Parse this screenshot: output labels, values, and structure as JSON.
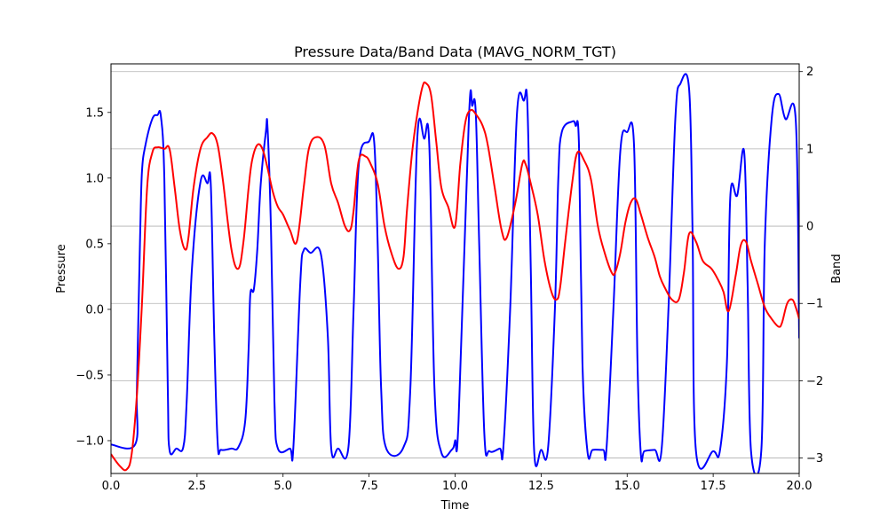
{
  "chart_data": {
    "type": "line",
    "title": "Pressure Data/Band Data (MAVG_NORM_TGT)",
    "xlabel": "Time",
    "ylabel": "Pressure",
    "y2label": "Band",
    "xlim": [
      0,
      20
    ],
    "ylim": [
      -1.25,
      1.87
    ],
    "y2lim": [
      -3.2,
      2.1
    ],
    "x_ticks": [
      0.0,
      2.5,
      5.0,
      7.5,
      10.0,
      12.5,
      15.0,
      17.5,
      20.0
    ],
    "x_tick_labels": [
      "0.0",
      "2.5",
      "5.0",
      "7.5",
      "10.0",
      "12.5",
      "15.0",
      "17.5",
      "20.0"
    ],
    "y_ticks": [
      -1.0,
      -0.5,
      0.0,
      0.5,
      1.0,
      1.5
    ],
    "y_tick_labels": [
      "−1.0",
      "−0.5",
      "0.0",
      "0.5",
      "1.0",
      "1.5"
    ],
    "y2_ticks": [
      -3,
      -2,
      -1,
      0,
      1,
      2
    ],
    "y2_tick_labels": [
      "−3",
      "−2",
      "−1",
      "0",
      "1",
      "2"
    ],
    "grid": "horizontal on secondary axis",
    "series": [
      {
        "axis": "left",
        "color": "#0000ff",
        "x": [
          0.0,
          0.7,
          0.75,
          0.8,
          0.85,
          0.9,
          1.0,
          1.2,
          1.35,
          1.45,
          1.55,
          1.65,
          1.7,
          1.9,
          2.1,
          2.2,
          2.35,
          2.6,
          2.8,
          2.9,
          3.0,
          3.1,
          3.2,
          3.5,
          3.7,
          3.9,
          4.0,
          4.05,
          4.15,
          4.25,
          4.35,
          4.5,
          4.55,
          4.65,
          4.75,
          4.85,
          5.2,
          5.3,
          5.5,
          5.6,
          5.8,
          6.1,
          6.3,
          6.4,
          6.6,
          6.9,
          7.05,
          7.2,
          7.5,
          7.65,
          7.75,
          7.85,
          8.0,
          8.5,
          8.7,
          8.9,
          9.1,
          9.25,
          9.4,
          9.6,
          9.9,
          10.0,
          10.1,
          10.4,
          10.5,
          10.6,
          10.7,
          10.85,
          11.0,
          11.3,
          11.4,
          11.6,
          11.8,
          12.0,
          12.1,
          12.2,
          12.3,
          12.5,
          12.7,
          12.9,
          13.0,
          13.1,
          13.4,
          13.5,
          13.6,
          13.7,
          13.85,
          14.0,
          14.3,
          14.4,
          14.6,
          14.8,
          15.0,
          15.2,
          15.3,
          15.4,
          15.5,
          15.8,
          16.0,
          16.2,
          16.4,
          16.55,
          16.8,
          16.9,
          17.0,
          17.5,
          17.7,
          17.9,
          18.0,
          18.2,
          18.4,
          18.5,
          18.6,
          18.9,
          19.0,
          19.2,
          19.4,
          19.6,
          19.9,
          20.0
        ],
        "y": [
          -1.03,
          -1.03,
          -0.65,
          0.0,
          0.6,
          1.05,
          1.25,
          1.45,
          1.48,
          1.47,
          1.0,
          -0.6,
          -1.07,
          -1.06,
          -1.05,
          -0.7,
          0.3,
          0.97,
          0.96,
          0.95,
          -0.2,
          -1.02,
          -1.07,
          -1.06,
          -1.05,
          -0.85,
          -0.3,
          0.12,
          0.15,
          0.45,
          0.95,
          1.35,
          1.38,
          0.6,
          -0.7,
          -1.06,
          -1.06,
          -1.05,
          0.2,
          0.45,
          0.43,
          0.42,
          -0.2,
          -1.06,
          -1.06,
          -1.05,
          0.0,
          1.1,
          1.28,
          1.27,
          0.5,
          -0.6,
          -1.06,
          -1.05,
          -0.6,
          1.3,
          1.3,
          1.25,
          -0.6,
          -1.09,
          -1.07,
          -1.0,
          -0.85,
          1.45,
          1.55,
          1.5,
          0.5,
          -0.95,
          -1.08,
          -1.06,
          -1.06,
          0.0,
          1.5,
          1.59,
          1.56,
          0.3,
          -1.09,
          -1.07,
          -1.06,
          0.0,
          1.0,
          1.35,
          1.43,
          1.4,
          1.25,
          -0.4,
          -1.09,
          -1.07,
          -1.07,
          -1.06,
          0.0,
          1.2,
          1.35,
          1.25,
          -0.4,
          -1.11,
          -1.08,
          -1.07,
          -1.07,
          0.0,
          1.45,
          1.72,
          1.68,
          0.6,
          -1.08,
          -1.08,
          -1.07,
          -0.4,
          0.87,
          0.87,
          1.2,
          0.2,
          -1.08,
          -1.07,
          0.5,
          1.45,
          1.64,
          1.45,
          1.44,
          -0.22
        ]
      },
      {
        "axis": "right",
        "color": "#ff0000",
        "x": [
          0.0,
          0.25,
          0.45,
          0.6,
          0.75,
          0.9,
          1.05,
          1.2,
          1.35,
          1.55,
          1.7,
          1.85,
          2.0,
          2.15,
          2.25,
          2.4,
          2.6,
          2.8,
          2.95,
          3.1,
          3.25,
          3.5,
          3.7,
          3.85,
          4.0,
          4.1,
          4.25,
          4.4,
          4.55,
          4.7,
          4.85,
          5.0,
          5.2,
          5.4,
          5.6,
          5.75,
          5.95,
          6.2,
          6.4,
          6.6,
          6.8,
          6.95,
          7.05,
          7.2,
          7.4,
          7.55,
          7.75,
          7.95,
          8.15,
          8.35,
          8.5,
          8.6,
          8.75,
          8.9,
          9.05,
          9.15,
          9.3,
          9.45,
          9.6,
          9.8,
          10.0,
          10.15,
          10.3,
          10.45,
          10.6,
          10.8,
          10.95,
          11.15,
          11.35,
          11.5,
          11.75,
          11.95,
          12.05,
          12.2,
          12.4,
          12.6,
          12.8,
          12.95,
          13.05,
          13.2,
          13.4,
          13.55,
          13.75,
          13.95,
          14.15,
          14.35,
          14.55,
          14.65,
          14.8,
          14.95,
          15.1,
          15.25,
          15.4,
          15.6,
          15.8,
          15.95,
          16.1,
          16.3,
          16.5,
          16.65,
          16.8,
          17.0,
          17.2,
          17.45,
          17.65,
          17.8,
          17.95,
          18.15,
          18.3,
          18.45,
          18.6,
          18.8,
          19.0,
          19.2,
          19.4,
          19.5,
          19.65,
          19.8,
          19.9,
          20.0
        ],
        "y": [
          -2.95,
          -3.1,
          -3.15,
          -2.95,
          -2.2,
          -1.0,
          0.5,
          0.95,
          1.02,
          1.0,
          1.0,
          0.5,
          -0.05,
          -0.3,
          -0.15,
          0.5,
          1.0,
          1.15,
          1.2,
          1.05,
          0.6,
          -0.3,
          -0.55,
          -0.2,
          0.5,
          0.85,
          1.05,
          1.0,
          0.75,
          0.45,
          0.25,
          0.15,
          -0.05,
          -0.2,
          0.5,
          1.0,
          1.15,
          1.05,
          0.55,
          0.3,
          0.0,
          -0.05,
          0.2,
          0.85,
          0.9,
          0.8,
          0.55,
          0.0,
          -0.35,
          -0.55,
          -0.4,
          0.2,
          0.95,
          1.45,
          1.8,
          1.85,
          1.7,
          1.1,
          0.5,
          0.25,
          0.0,
          0.8,
          1.35,
          1.5,
          1.45,
          1.3,
          1.05,
          0.5,
          -0.05,
          -0.15,
          0.3,
          0.8,
          0.8,
          0.55,
          0.15,
          -0.45,
          -0.85,
          -0.95,
          -0.8,
          -0.2,
          0.55,
          0.95,
          0.85,
          0.6,
          0.0,
          -0.35,
          -0.6,
          -0.6,
          -0.35,
          0.05,
          0.3,
          0.35,
          0.15,
          -0.15,
          -0.4,
          -0.65,
          -0.8,
          -0.95,
          -0.95,
          -0.6,
          -0.1,
          -0.2,
          -0.45,
          -0.55,
          -0.7,
          -0.85,
          -1.1,
          -0.65,
          -0.25,
          -0.2,
          -0.45,
          -0.75,
          -1.05,
          -1.2,
          -1.3,
          -1.25,
          -1.0,
          -0.95,
          -1.05,
          -1.2
        ]
      }
    ]
  }
}
